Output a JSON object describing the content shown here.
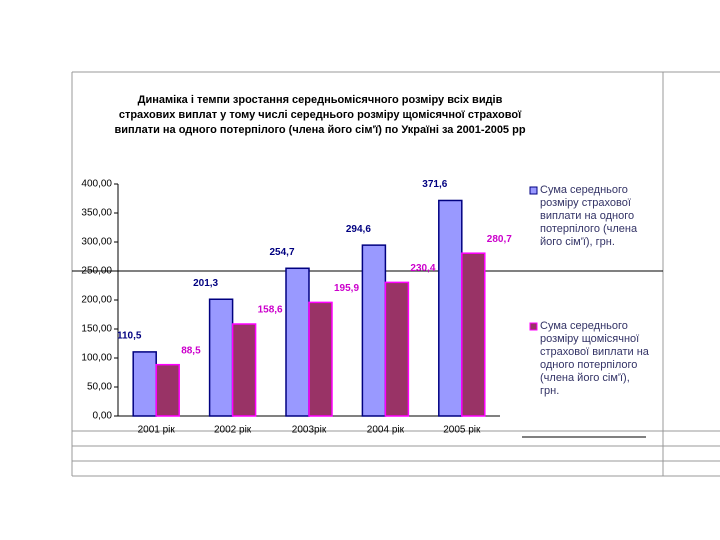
{
  "chart_data": {
    "type": "bar",
    "title": [
      "Динаміка і темпи зростання   середньомісячного розміру всіх видів",
      "страхових виплат  у тому числі середнього розміру щомісячної страхової",
      "виплати на одного потерпілого (члена його сім'ї) по Україні за 2001-2005 рр"
    ],
    "categories": [
      "2001 рік",
      "2002 рік",
      "2003рік",
      "2004 рік",
      "2005 рік"
    ],
    "series": [
      {
        "name": "Сума середнього розміру страхової виплати на одного потерпілого (члена його сім'ї), грн.",
        "color": "#9999ff",
        "label_color": "#000080",
        "values": [
          110.5,
          201.3,
          254.7,
          294.6,
          371.6
        ],
        "value_labels": [
          "110,5",
          "201,3",
          "254,7",
          "294,6",
          "371,6"
        ]
      },
      {
        "name": "Сума середнього розміру щомісячної страхової виплати на одного потерпілого (члена його сім'ї), грн.",
        "color": "#993366",
        "label_color": "#cc00cc",
        "values": [
          88.5,
          158.6,
          195.9,
          230.4,
          280.7
        ],
        "value_labels": [
          "88,5",
          "158,6",
          "195,9",
          "230,4",
          "280,7"
        ]
      }
    ],
    "ylim": [
      0,
      400
    ],
    "yticks": [
      {
        "value": 0,
        "label": "0,00"
      },
      {
        "value": 50,
        "label": "50,00"
      },
      {
        "value": 100,
        "label": "100,00"
      },
      {
        "value": 150,
        "label": "150,00"
      },
      {
        "value": 200,
        "label": "200,00"
      },
      {
        "value": 250,
        "label": "250,00"
      },
      {
        "value": 300,
        "label": "300,00"
      },
      {
        "value": 350,
        "label": "350,00"
      },
      {
        "value": 400,
        "label": "400,00"
      }
    ],
    "grid": false
  }
}
